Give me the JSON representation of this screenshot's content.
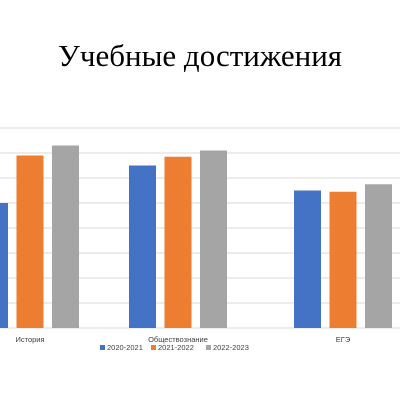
{
  "slide": {
    "title": "Учебные достижения"
  },
  "chart_data": {
    "type": "bar",
    "title": "Учебные достижения",
    "xlabel": "",
    "ylabel": "",
    "categories": [
      "История",
      "Обществознание",
      "ЕГЭ"
    ],
    "series": [
      {
        "name": "2020-2021",
        "color": "#4472C4",
        "values": [
          5.0,
          6.5,
          5.5
        ]
      },
      {
        "name": "2021-2022",
        "color": "#ED7D31",
        "values": [
          6.9,
          6.85,
          5.45
        ]
      },
      {
        "name": "2022-2023",
        "color": "#A5A5A5",
        "values": [
          7.3,
          7.1,
          5.75
        ]
      }
    ],
    "ylim": [
      0,
      8
    ],
    "grid": true,
    "legend_position": "bottom",
    "gridline_color": "#D9D9D9"
  }
}
